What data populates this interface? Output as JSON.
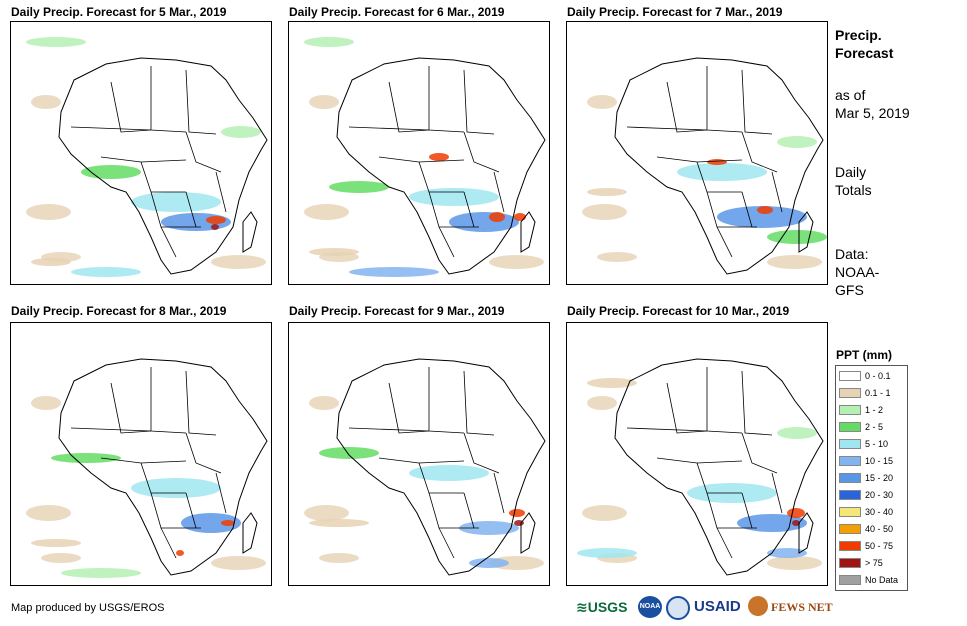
{
  "panels": [
    {
      "title": "Daily Precip. Forecast for 5 Mar., 2019"
    },
    {
      "title": "Daily Precip. Forecast for 6 Mar., 2019"
    },
    {
      "title": "Daily Precip. Forecast for 7 Mar., 2019"
    },
    {
      "title": "Daily Precip. Forecast for 8 Mar., 2019"
    },
    {
      "title": "Daily Precip. Forecast for 9 Mar., 2019"
    },
    {
      "title": "Daily Precip. Forecast for 10 Mar., 2019"
    }
  ],
  "sidebar": {
    "heading_line1": "Precip.",
    "heading_line2": "Forecast",
    "asof_line1": "as of",
    "asof_line2": "Mar 5, 2019",
    "daily_line1": "Daily",
    "daily_line2": "Totals",
    "data_line1": "Data:",
    "data_line2": "NOAA-",
    "data_line3": "GFS"
  },
  "legend": {
    "title": "PPT (mm)",
    "items": [
      {
        "label": "0 - 0.1",
        "color": "#ffffff"
      },
      {
        "label": "0.1 - 1",
        "color": "#e6d2b4"
      },
      {
        "label": "1 - 2",
        "color": "#b4f0b4"
      },
      {
        "label": "2 - 5",
        "color": "#64dc64"
      },
      {
        "label": "5 - 10",
        "color": "#a0e6f0"
      },
      {
        "label": "10 - 15",
        "color": "#82b4f0"
      },
      {
        "label": "15 - 20",
        "color": "#5a96e6"
      },
      {
        "label": "20 - 30",
        "color": "#2864dc"
      },
      {
        "label": "30 - 40",
        "color": "#f5e678"
      },
      {
        "label": "40 - 50",
        "color": "#f5a000"
      },
      {
        "label": "50 - 75",
        "color": "#f03c00"
      },
      {
        "label": "> 75",
        "color": "#a01414"
      },
      {
        "label": "No Data",
        "color": "#a0a0a0"
      }
    ]
  },
  "footer": {
    "credit": "Map produced by USGS/EROS",
    "logos": {
      "usgs": "≋USGS",
      "noaa": "NOAA",
      "usaid": "USAID",
      "fewsnet": "FEWS NET"
    }
  }
}
